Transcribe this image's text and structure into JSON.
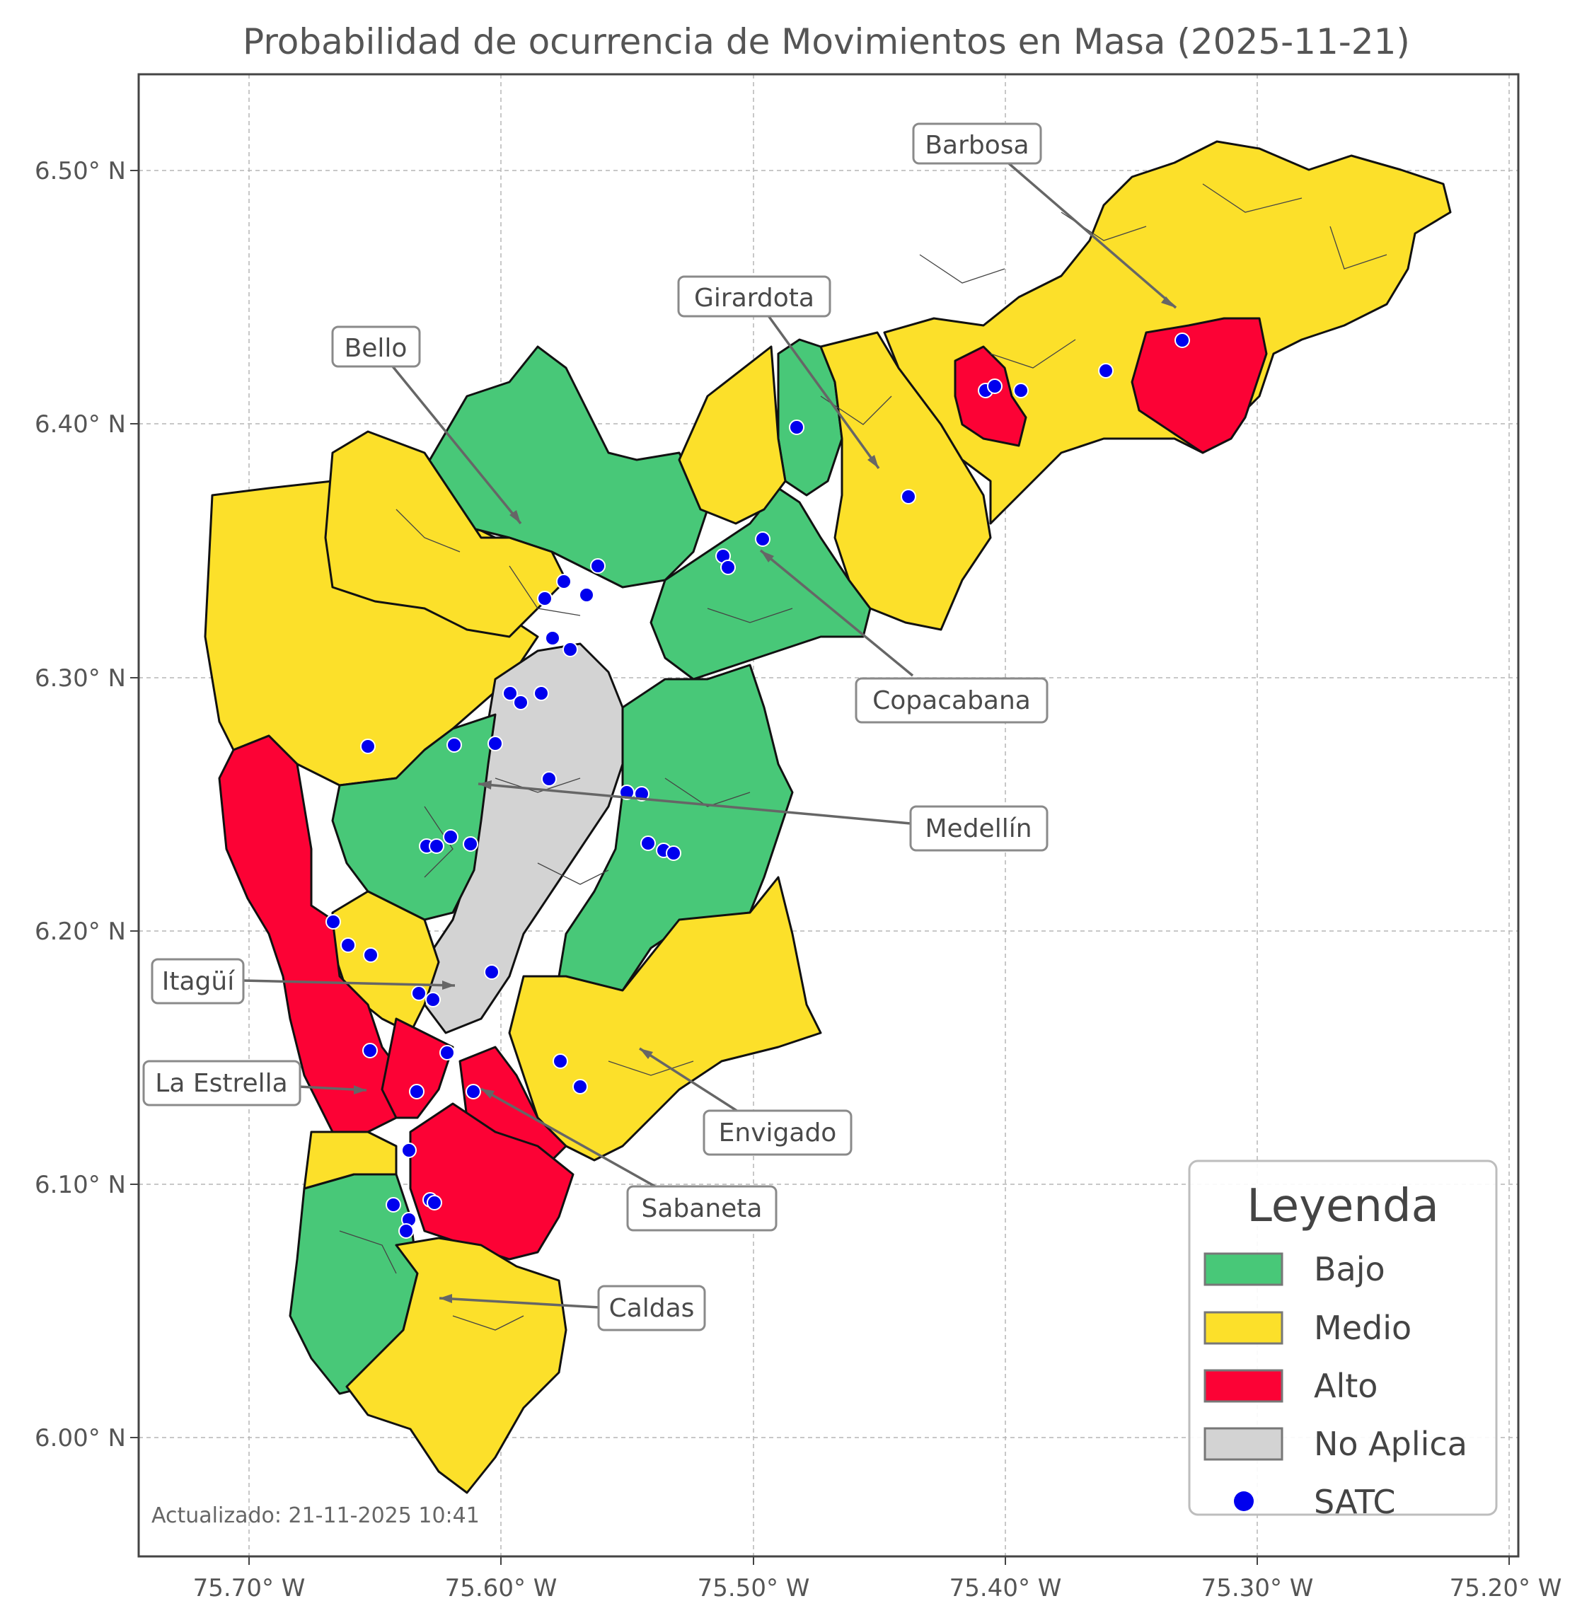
{
  "title": "Probabilidad de ocurrencia de Movimientos en Masa (2025-11-21)",
  "axes": {
    "x_ticks": [
      "75.70° W",
      "75.60° W",
      "75.50° W",
      "75.40° W",
      "75.30° W",
      "75.20° W"
    ],
    "y_ticks": [
      "6.50° N",
      "6.40° N",
      "6.30° N",
      "6.20° N",
      "6.10° N",
      "6.00° N"
    ],
    "grid": true
  },
  "colors": {
    "bajo": "#48c878",
    "medio": "#fce02a",
    "alto": "#fc0235",
    "no_aplica": "#d3d3d3",
    "satc": "#0000ee"
  },
  "municipalities": [
    "Barbosa",
    "Girardota",
    "Bello",
    "Copacabana",
    "Medellín",
    "Itagüí",
    "La Estrella",
    "Envigado",
    "Sabaneta",
    "Caldas"
  ],
  "legend": {
    "title": "Leyenda",
    "placement": "bottom-right",
    "items": [
      {
        "label": "Bajo",
        "color": "#48c878",
        "kind": "patch"
      },
      {
        "label": "Medio",
        "color": "#fce02a",
        "kind": "patch"
      },
      {
        "label": "Alto",
        "color": "#fc0235",
        "kind": "patch"
      },
      {
        "label": "No Aplica",
        "color": "#d3d3d3",
        "kind": "patch"
      },
      {
        "label": "SATC",
        "color": "#0000ee",
        "kind": "marker"
      }
    ]
  },
  "footer": "Actualizado: 21-11-2025 10:41"
}
